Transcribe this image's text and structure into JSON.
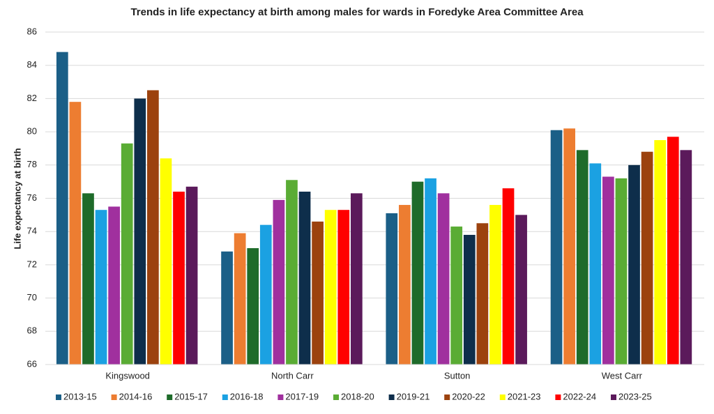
{
  "chart_data": {
    "type": "bar",
    "title": "Trends in life expectancy at birth among males for wards in Foredyke Area Committee Area",
    "y_label": "Life expectancy at birth",
    "categories": [
      "Kingswood",
      "North Carr",
      "Sutton",
      "West Carr"
    ],
    "series": [
      {
        "name": "2013-15",
        "color": "#1b5f87",
        "values": [
          84.8,
          72.8,
          75.1,
          80.1
        ]
      },
      {
        "name": "2014-16",
        "color": "#ed7d31",
        "values": [
          81.8,
          73.9,
          75.6,
          80.2
        ]
      },
      {
        "name": "2015-17",
        "color": "#1e6b2a",
        "values": [
          76.3,
          73.0,
          77.0,
          78.9
        ]
      },
      {
        "name": "2016-18",
        "color": "#1ba1e2",
        "values": [
          75.3,
          74.4,
          77.2,
          78.1
        ]
      },
      {
        "name": "2017-19",
        "color": "#a0309e",
        "values": [
          75.5,
          75.9,
          76.3,
          77.3
        ]
      },
      {
        "name": "2018-20",
        "color": "#5aac34",
        "values": [
          79.3,
          77.1,
          74.3,
          77.2
        ]
      },
      {
        "name": "2019-21",
        "color": "#0e2e4b",
        "values": [
          82.0,
          76.4,
          73.8,
          78.0
        ]
      },
      {
        "name": "2020-22",
        "color": "#9c420e",
        "values": [
          82.5,
          74.6,
          74.5,
          78.8
        ]
      },
      {
        "name": "2021-23",
        "color": "#ffff00",
        "values": [
          78.4,
          75.3,
          75.6,
          79.5
        ]
      },
      {
        "name": "2022-24",
        "color": "#ff0000",
        "values": [
          76.4,
          75.3,
          76.6,
          79.7
        ]
      },
      {
        "name": "2023-25",
        "color": "#5b1a5b",
        "values": [
          76.7,
          76.3,
          75.0,
          78.9
        ]
      }
    ],
    "ylim": [
      66,
      86
    ],
    "yticks": [
      66,
      68,
      70,
      72,
      74,
      76,
      78,
      80,
      82,
      84,
      86
    ],
    "grid": true,
    "legend": "bottom"
  }
}
